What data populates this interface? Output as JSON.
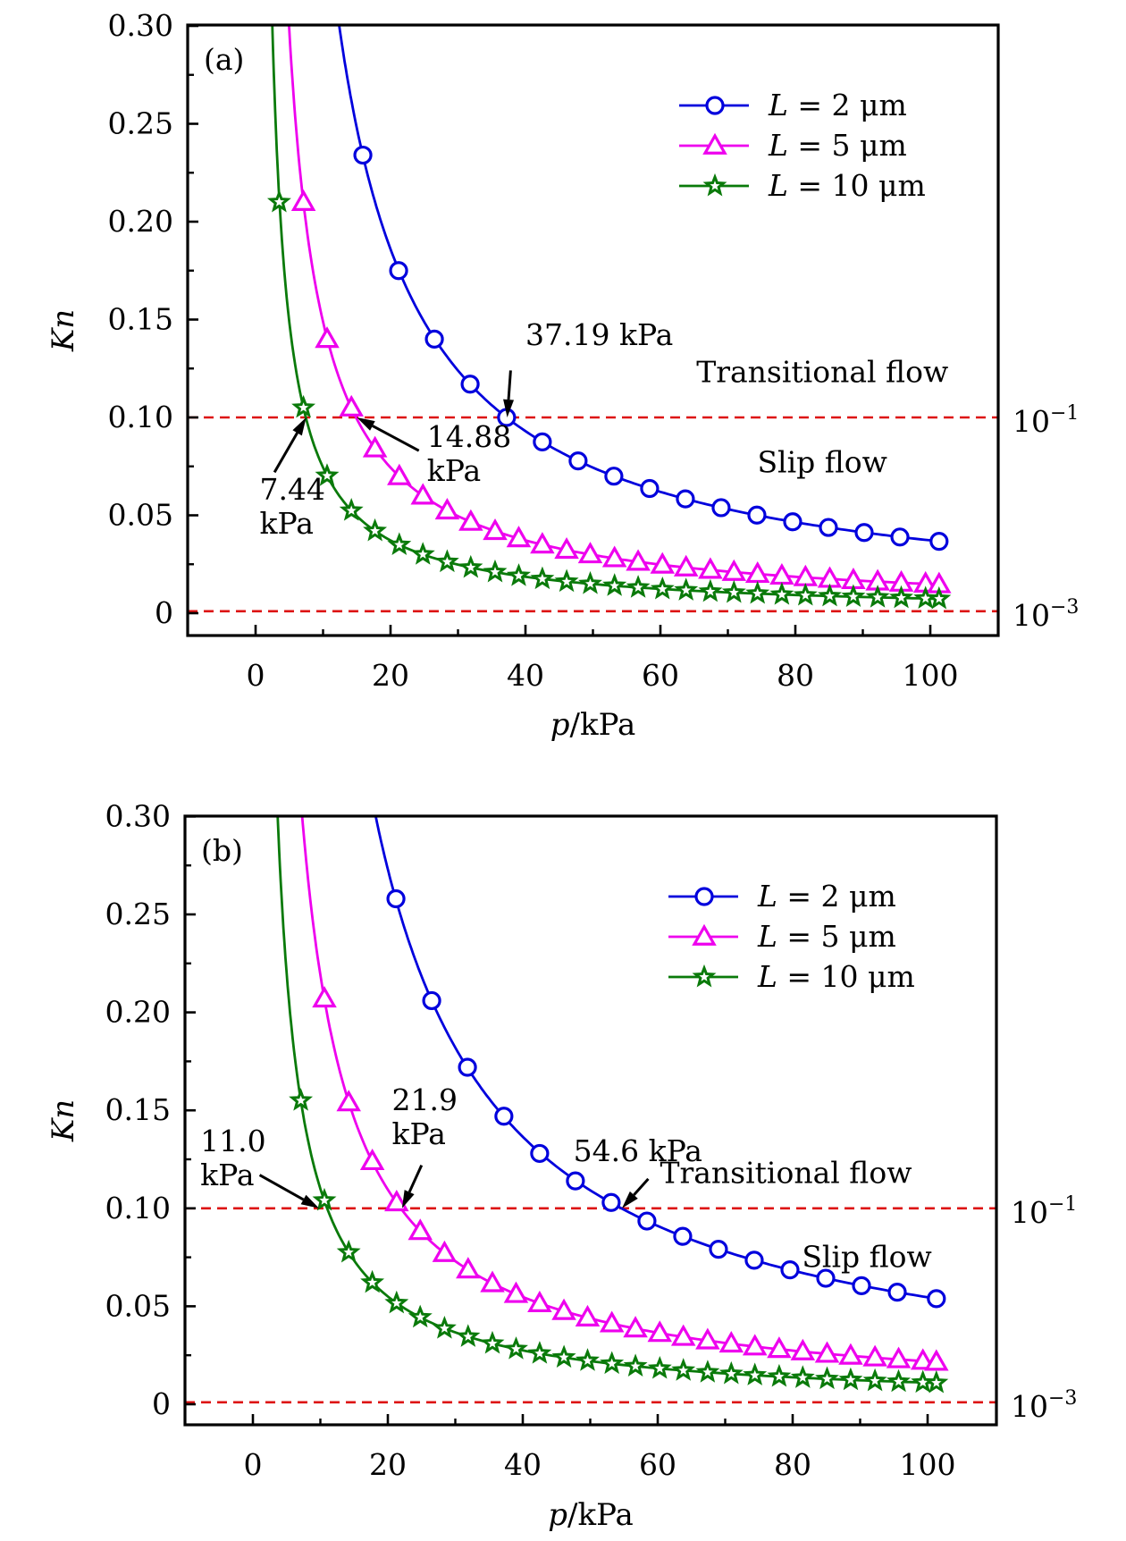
{
  "chart_data": [
    {
      "type": "line",
      "panel_label": "(a)",
      "xlabel_italic": "p",
      "xlabel_rest": "/kPa",
      "ylabel": "Kn",
      "xlim": [
        -10,
        110
      ],
      "ylim": [
        -0.01,
        0.3
      ],
      "xticks": [
        0,
        20,
        40,
        60,
        80,
        100
      ],
      "xtick_labels": [
        "0",
        "20",
        "40",
        "60",
        "80",
        "100"
      ],
      "yticks": [
        0,
        0.05,
        0.1,
        0.15,
        0.2,
        0.25,
        0.3
      ],
      "ytick_labels": [
        "0",
        "0.05",
        "0.10",
        "0.15",
        "0.20",
        "0.25",
        "0.30"
      ],
      "right_labels": [
        {
          "y": 0.1,
          "base": "10",
          "exp": "−1"
        },
        {
          "y": 0.001,
          "base": "10",
          "exp": "−3"
        }
      ],
      "hlines": [
        0.1,
        0.001
      ],
      "region_labels": [
        {
          "text": "Transitional flow",
          "x": 84,
          "y": 0.118
        },
        {
          "text": "Slip flow",
          "x": 84,
          "y": 0.072
        }
      ],
      "annotations": [
        {
          "lines": [
            "37.19 kPa"
          ],
          "text_x": 40,
          "text_y": 0.137,
          "arrow_from": [
            37.8,
            0.124
          ],
          "arrow_to": [
            37.3,
            0.1
          ]
        },
        {
          "lines": [
            "14.88",
            "kPa"
          ],
          "text_x": 25.4,
          "text_y": 0.085,
          "arrow_from": [
            24.2,
            0.083
          ],
          "arrow_to": [
            15.0,
            0.1
          ]
        },
        {
          "lines": [
            "7.44",
            "kPa"
          ],
          "text_x": 0.6,
          "text_y": 0.058,
          "arrow_from": [
            2.8,
            0.072
          ],
          "arrow_to": [
            7.5,
            0.1
          ]
        }
      ],
      "legend": {
        "position": "top-right"
      },
      "series": [
        {
          "name": "L = 2 μm",
          "legend_L": "L",
          "legend_rest": " = 2 μm",
          "color": "#0000dd",
          "marker": "circle",
          "C": 3.719,
          "x": [
            15.9,
            21.2,
            26.5,
            31.8,
            37.2,
            42.5,
            47.8,
            53.1,
            58.4,
            63.7,
            69.0,
            74.3,
            79.6,
            84.9,
            90.2,
            95.5,
            101.3
          ],
          "y": [
            0.234,
            0.175,
            0.14,
            0.117,
            0.1,
            0.0875,
            0.0778,
            0.07,
            0.0637,
            0.0584,
            0.0539,
            0.0501,
            0.0467,
            0.0438,
            0.0412,
            0.0389,
            0.0367
          ]
        },
        {
          "name": "L = 5 μm",
          "legend_L": "L",
          "legend_rest": " = 5 μm",
          "color": "#ee00ee",
          "marker": "triangle",
          "C": 1.488,
          "x": [
            7.1,
            10.6,
            14.2,
            17.7,
            21.3,
            24.8,
            28.4,
            31.9,
            35.5,
            39.0,
            42.5,
            46.1,
            49.6,
            53.2,
            56.7,
            60.3,
            63.8,
            67.4,
            70.9,
            74.4,
            78.0,
            81.5,
            85.1,
            88.6,
            92.2,
            95.7,
            99.3,
            101.3
          ],
          "y": [
            0.21,
            0.14,
            0.105,
            0.0841,
            0.0699,
            0.06,
            0.0524,
            0.0466,
            0.0419,
            0.0382,
            0.035,
            0.0323,
            0.03,
            0.028,
            0.0262,
            0.0247,
            0.0233,
            0.0221,
            0.021,
            0.02,
            0.0191,
            0.0183,
            0.0175,
            0.0168,
            0.0161,
            0.0155,
            0.015,
            0.0147
          ]
        },
        {
          "name": "L = 10 μm",
          "legend_L": "L",
          "legend_rest": " = 10 μm",
          "color": "#0a7a0a",
          "marker": "star",
          "C": 0.744,
          "x": [
            3.5,
            7.1,
            10.6,
            14.2,
            17.7,
            21.3,
            24.8,
            28.4,
            31.9,
            35.5,
            39.0,
            42.5,
            46.1,
            49.6,
            53.2,
            56.7,
            60.3,
            63.8,
            67.4,
            70.9,
            74.4,
            78.0,
            81.5,
            85.1,
            88.6,
            92.2,
            95.7,
            99.3,
            101.3
          ],
          "y": [
            0.21,
            0.105,
            0.0702,
            0.0524,
            0.042,
            0.0349,
            0.03,
            0.0262,
            0.0233,
            0.021,
            0.0191,
            0.0175,
            0.0161,
            0.015,
            0.014,
            0.0131,
            0.0123,
            0.0117,
            0.011,
            0.0105,
            0.01,
            0.0095,
            0.0091,
            0.0087,
            0.0084,
            0.0081,
            0.0078,
            0.0075,
            0.0073
          ]
        }
      ]
    },
    {
      "type": "line",
      "panel_label": "(b)",
      "xlabel_italic": "p",
      "xlabel_rest": "/kPa",
      "ylabel": "Kn",
      "xlim": [
        -10,
        110
      ],
      "ylim": [
        -0.01,
        0.3
      ],
      "xticks": [
        0,
        20,
        40,
        60,
        80,
        100
      ],
      "xtick_labels": [
        "0",
        "20",
        "40",
        "60",
        "80",
        "100"
      ],
      "yticks": [
        0,
        0.05,
        0.1,
        0.15,
        0.2,
        0.25,
        0.3
      ],
      "ytick_labels": [
        "0",
        "0.05",
        "0.10",
        "0.15",
        "0.20",
        "0.25",
        "0.30"
      ],
      "right_labels": [
        {
          "y": 0.1,
          "base": "10",
          "exp": "−1"
        },
        {
          "y": 0.001,
          "base": "10",
          "exp": "−3"
        }
      ],
      "hlines": [
        0.1,
        0.001
      ],
      "region_labels": [
        {
          "text": "Transitional flow",
          "x": 79,
          "y": 0.113
        },
        {
          "text": "Slip flow",
          "x": 91,
          "y": 0.07
        }
      ],
      "annotations": [
        {
          "lines": [
            "54.6 kPa"
          ],
          "text_x": 47.5,
          "text_y": 0.124,
          "arrow_from": [
            58.6,
            0.115
          ],
          "arrow_to": [
            54.7,
            0.1
          ]
        },
        {
          "lines": [
            "21.9",
            "kPa"
          ],
          "text_x": 20.6,
          "text_y": 0.15,
          "arrow_from": [
            25.0,
            0.122
          ],
          "arrow_to": [
            22.1,
            0.1
          ]
        },
        {
          "lines": [
            "11.0",
            "kPa"
          ],
          "text_x": -7.8,
          "text_y": 0.129,
          "arrow_from": [
            1.0,
            0.117
          ],
          "arrow_to": [
            9.8,
            0.1
          ]
        }
      ],
      "legend": {
        "position": "top-right"
      },
      "series": [
        {
          "name": "L = 2 μm",
          "legend_L": "L",
          "legend_rest": " = 2 μm",
          "color": "#0000dd",
          "marker": "circle",
          "C": 5.46,
          "x": [
            21.2,
            26.5,
            31.8,
            37.2,
            42.5,
            47.8,
            53.1,
            58.4,
            63.7,
            69.0,
            74.3,
            79.6,
            84.9,
            90.2,
            95.5,
            101.3
          ],
          "y": [
            0.258,
            0.206,
            0.172,
            0.147,
            0.128,
            0.114,
            0.103,
            0.0935,
            0.0857,
            0.0791,
            0.0735,
            0.0686,
            0.0643,
            0.0605,
            0.0572,
            0.0539
          ]
        },
        {
          "name": "L = 5 μm",
          "legend_L": "L",
          "legend_rest": " = 5 μm",
          "color": "#ee00ee",
          "marker": "triangle",
          "C": 2.19,
          "x": [
            10.6,
            14.2,
            17.7,
            21.3,
            24.8,
            28.4,
            31.9,
            35.5,
            39.0,
            42.5,
            46.1,
            49.6,
            53.2,
            56.7,
            60.3,
            63.8,
            67.4,
            70.9,
            74.4,
            78.0,
            81.5,
            85.1,
            88.6,
            92.2,
            95.7,
            99.3,
            101.3
          ],
          "y": [
            0.207,
            0.154,
            0.124,
            0.103,
            0.0883,
            0.0771,
            0.0687,
            0.0617,
            0.0562,
            0.0515,
            0.0475,
            0.0442,
            0.0412,
            0.0386,
            0.0363,
            0.0343,
            0.0325,
            0.0309,
            0.0294,
            0.0281,
            0.0269,
            0.0257,
            0.0247,
            0.0238,
            0.0229,
            0.0221,
            0.0216
          ]
        },
        {
          "name": "L = 10 μm",
          "legend_L": "L",
          "legend_rest": " = 10 μm",
          "color": "#0a7a0a",
          "marker": "star",
          "C": 1.1,
          "x": [
            7.1,
            10.6,
            14.2,
            17.7,
            21.3,
            24.8,
            28.4,
            31.9,
            35.5,
            39.0,
            42.5,
            46.1,
            49.6,
            53.2,
            56.7,
            60.3,
            63.8,
            67.4,
            70.9,
            74.4,
            78.0,
            81.5,
            85.1,
            88.6,
            92.2,
            95.7,
            99.3,
            101.3
          ],
          "y": [
            0.155,
            0.104,
            0.0775,
            0.0621,
            0.0516,
            0.0444,
            0.0387,
            0.0345,
            0.031,
            0.0282,
            0.0259,
            0.0239,
            0.0222,
            0.0207,
            0.0194,
            0.0182,
            0.0172,
            0.0163,
            0.0155,
            0.0148,
            0.0141,
            0.0135,
            0.0129,
            0.0124,
            0.0119,
            0.0115,
            0.0111,
            0.0109
          ]
        }
      ]
    }
  ]
}
